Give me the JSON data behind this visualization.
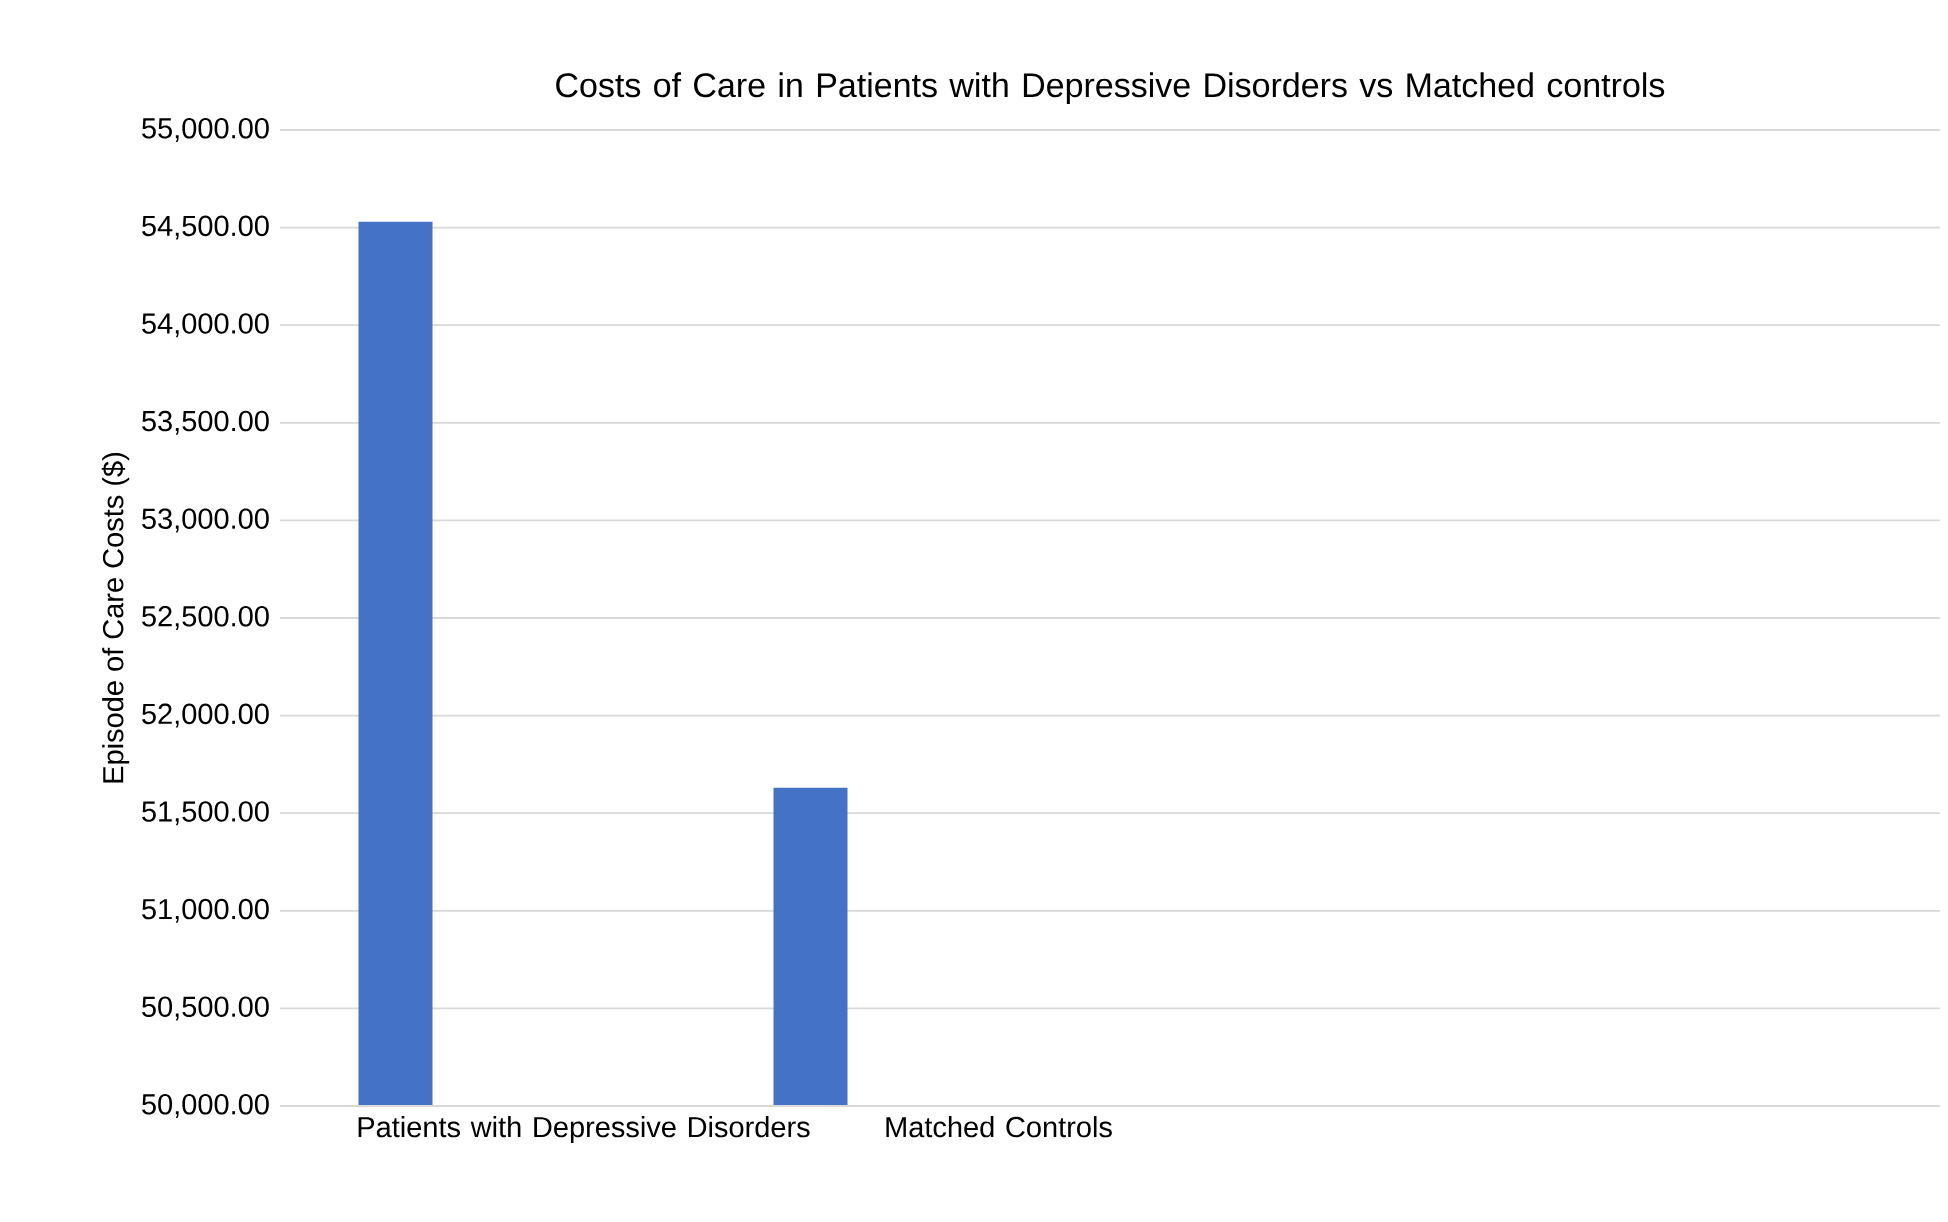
{
  "chart_data": {
    "type": "bar",
    "title": "Costs of Care in Patients with Depressive Disorders vs Matched controls",
    "ylabel": "Episode of Care Costs ($)",
    "categories": [
      "Patients with Depressive Disorders",
      "Matched Controls",
      null,
      null
    ],
    "values": [
      54530,
      51630,
      null,
      null
    ],
    "color": "#4472c4",
    "ylim": [
      50000,
      55000
    ],
    "yticks": [
      {
        "value": 50000,
        "label": "50,000.00"
      },
      {
        "value": 50500,
        "label": "50,500.00"
      },
      {
        "value": 51000,
        "label": "51,000.00"
      },
      {
        "value": 51500,
        "label": "51,500.00"
      },
      {
        "value": 52000,
        "label": "52,000.00"
      },
      {
        "value": 52500,
        "label": "52,500.00"
      },
      {
        "value": 53000,
        "label": "53,000.00"
      },
      {
        "value": 53500,
        "label": "53,500.00"
      },
      {
        "value": 54000,
        "label": "54,000.00"
      },
      {
        "value": 54500,
        "label": "54,500.00"
      },
      {
        "value": 55000,
        "label": "55,000.00"
      }
    ],
    "grid": "y"
  }
}
